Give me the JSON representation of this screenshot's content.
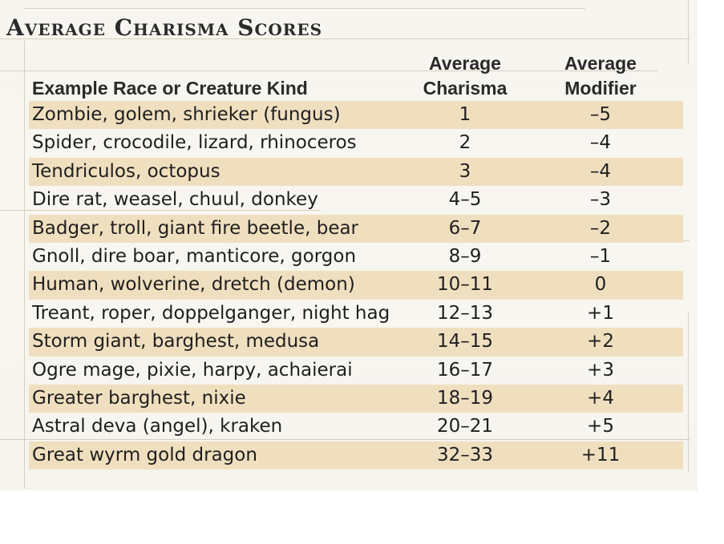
{
  "title": "Average Charisma Scores",
  "columns": {
    "race": "Example Race or Creature Kind",
    "charisma": "Average Charisma",
    "modifier": "Average Modifier"
  },
  "header": {
    "charisma_line1": "Average",
    "charisma_line2": "Charisma",
    "modifier_line1": "Average",
    "modifier_line2": "Modifier"
  },
  "rows": [
    {
      "race": "Zombie, golem, shrieker (fungus)",
      "charisma": "1",
      "modifier": "–5"
    },
    {
      "race": "Spider, crocodile, lizard, rhinoceros",
      "charisma": "2",
      "modifier": "–4"
    },
    {
      "race": "Tendriculos, octopus",
      "charisma": "3",
      "modifier": "–4"
    },
    {
      "race": "Dire rat, weasel, chuul, donkey",
      "charisma": "4–5",
      "modifier": "–3"
    },
    {
      "race": "Badger, troll, giant fire beetle, bear",
      "charisma": "6–7",
      "modifier": "–2"
    },
    {
      "race": "Gnoll, dire boar, manticore, gorgon",
      "charisma": "8–9",
      "modifier": "–1"
    },
    {
      "race": "Human, wolverine, dretch (demon)",
      "charisma": "10–11",
      "modifier": "0"
    },
    {
      "race": "Treant, roper, doppelganger, night hag",
      "charisma": "12–13",
      "modifier": "+1"
    },
    {
      "race": "Storm giant, barghest, medusa",
      "charisma": "14–15",
      "modifier": "+2"
    },
    {
      "race": "Ogre mage, pixie, harpy, achaierai",
      "charisma": "16–17",
      "modifier": "+3"
    },
    {
      "race": "Greater barghest, nixie",
      "charisma": "18–19",
      "modifier": "+4"
    },
    {
      "race": "Astral deva (angel), kraken",
      "charisma": "20–21",
      "modifier": "+5"
    },
    {
      "race": "Great wyrm gold dragon",
      "charisma": "32–33",
      "modifier": "+11"
    }
  ],
  "colors": {
    "row_shade": "#f0dfbf",
    "parchment": "#f7f5ef",
    "text": "#1f1f1f"
  }
}
